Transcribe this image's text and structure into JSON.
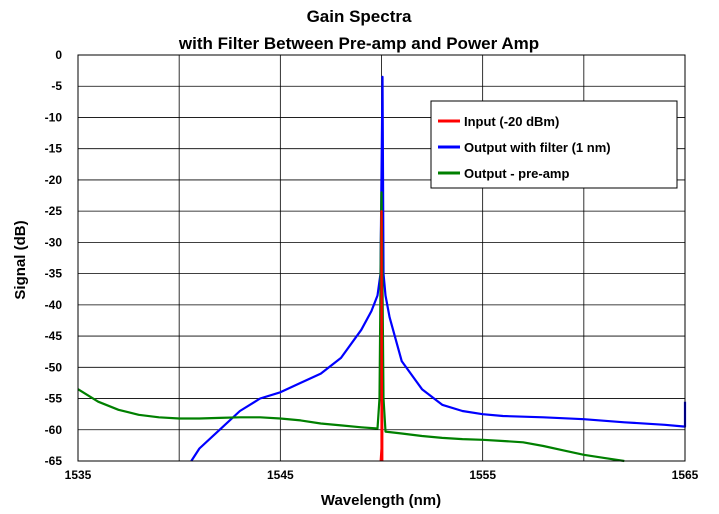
{
  "chart_data": {
    "type": "line",
    "title": "Gain Spectra",
    "subtitle": "with Filter Between Pre-amp and Power Amp",
    "xlabel": "Wavelength (nm)",
    "ylabel": "Signal (dB)",
    "xlim": [
      1535,
      1565
    ],
    "ylim": [
      -65,
      0
    ],
    "x_ticks": [
      1535,
      1540,
      1545,
      1550,
      1555,
      1560,
      1565
    ],
    "x_tick_labels": [
      "1535",
      "1545",
      "1555",
      "1565"
    ],
    "y_ticks": [
      0,
      -5,
      -10,
      -15,
      -20,
      -25,
      -30,
      -35,
      -40,
      -45,
      -50,
      -55,
      -60,
      -65
    ],
    "grid": true,
    "legend_position": "top-right",
    "series": [
      {
        "name": "Input (-20 dBm)",
        "color": "#ff0000",
        "x": [
          1549.96,
          1550.0,
          1550.0,
          1550.0,
          1550.02,
          1550.04,
          1550.04
        ],
        "y": [
          -65,
          -63,
          -55,
          -25,
          -55,
          -60,
          -65
        ]
      },
      {
        "name": "Output with filter (1 nm)",
        "color": "#0000ff",
        "x": [
          1540.6,
          1541.0,
          1542.0,
          1543.0,
          1544.0,
          1545.0,
          1546.0,
          1547.0,
          1548.0,
          1549.0,
          1549.5,
          1549.8,
          1549.95,
          1550.05,
          1550.1,
          1550.2,
          1550.4,
          1551.0,
          1552.0,
          1553.0,
          1554.0,
          1555.0,
          1556.0,
          1558.0,
          1560.0,
          1562.0,
          1564.0,
          1565.0,
          1565.0
        ],
        "y": [
          -65,
          -63,
          -60,
          -57,
          -55,
          -54,
          -52.5,
          -51,
          -48.5,
          -44,
          -41,
          -38.5,
          -35,
          -3.5,
          -35,
          -38.5,
          -42,
          -49,
          -53.5,
          -56,
          -57,
          -57.5,
          -57.8,
          -58,
          -58.3,
          -58.8,
          -59.2,
          -59.5,
          -55.5
        ]
      },
      {
        "name": "Output - pre-amp",
        "color": "#008000",
        "x": [
          1535.0,
          1536.0,
          1537.0,
          1538.0,
          1539.0,
          1540.0,
          1541.0,
          1542.0,
          1543.0,
          1544.0,
          1545.0,
          1546.0,
          1547.0,
          1548.0,
          1549.0,
          1549.8,
          1549.9,
          1549.97,
          1550.0,
          1550.03,
          1550.1,
          1550.2,
          1551.0,
          1552.0,
          1553.0,
          1554.0,
          1555.0,
          1556.0,
          1557.0,
          1558.0,
          1559.0,
          1560.0,
          1561.0,
          1562.0
        ],
        "y": [
          -53.5,
          -55.5,
          -56.8,
          -57.6,
          -58.0,
          -58.2,
          -58.2,
          -58.1,
          -58.0,
          -58.0,
          -58.2,
          -58.5,
          -59.0,
          -59.3,
          -59.6,
          -59.8,
          -55.0,
          -30.0,
          -22.0,
          -30.0,
          -55.0,
          -60.3,
          -60.6,
          -61.0,
          -61.3,
          -61.5,
          -61.6,
          -61.8,
          -62.0,
          -62.6,
          -63.3,
          -64.0,
          -64.5,
          -65.0
        ]
      }
    ]
  }
}
